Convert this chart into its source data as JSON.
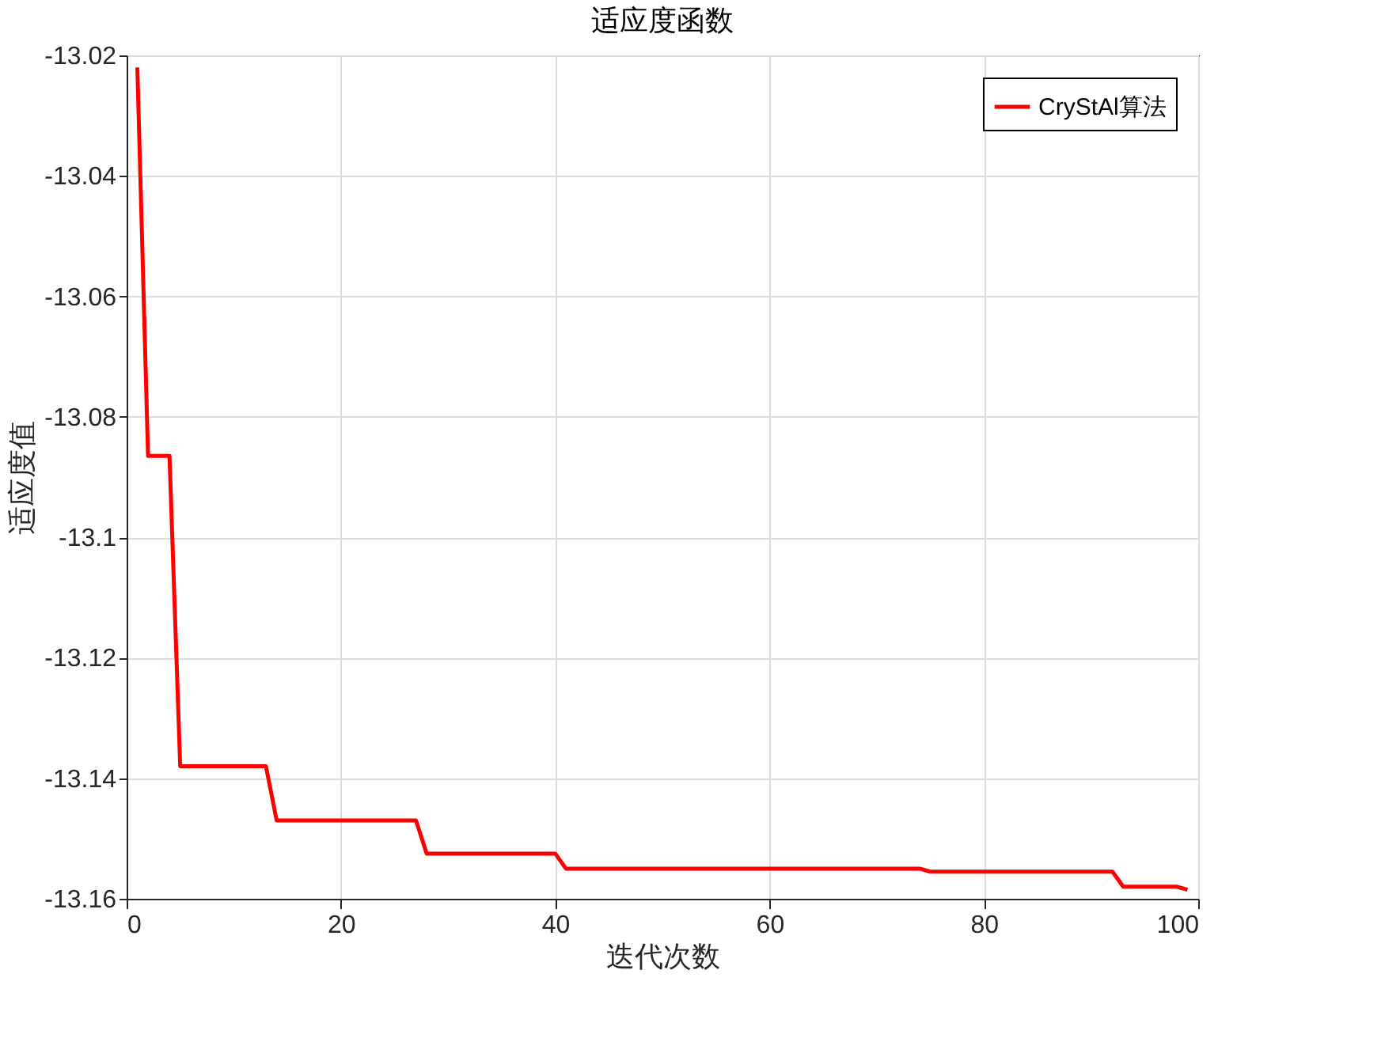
{
  "chart_data": {
    "type": "line",
    "title": "适应度函数",
    "xlabel": "迭代次数",
    "ylabel": "适应度值",
    "xlim": [
      0,
      100
    ],
    "xticks": [
      0,
      20,
      40,
      60,
      80,
      100
    ],
    "ylim": [
      -13.16,
      -13.02
    ],
    "yticks": [
      -13.16,
      -13.14,
      -13.12,
      -13.1,
      -13.08,
      -13.06,
      -13.04,
      -13.02
    ],
    "grid": true,
    "legend": "top right",
    "marker": "none",
    "line_style": "solid",
    "series": [
      {
        "name": "CryStAl算法",
        "color": "#ff0000",
        "x": [
          1,
          2,
          4,
          5,
          13,
          14,
          27,
          28,
          40,
          41,
          74,
          75,
          92,
          93,
          98,
          99
        ],
        "values": [
          -13.022,
          -13.0865,
          -13.0865,
          -13.138,
          -13.138,
          -13.147,
          -13.147,
          -13.1525,
          -13.1525,
          -13.155,
          -13.155,
          -13.1555,
          -13.1555,
          -13.158,
          -13.158,
          -13.1585
        ]
      }
    ]
  }
}
